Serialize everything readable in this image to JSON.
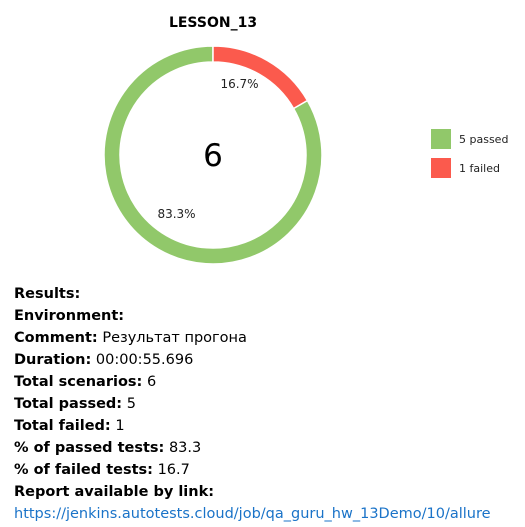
{
  "chart_data": {
    "type": "pie",
    "title": "LESSON_13",
    "center_label": "6",
    "slices": [
      {
        "label": "5 passed",
        "value": 5,
        "percent_label": "83.3%",
        "color": "#91c86a"
      },
      {
        "label": "1 failed",
        "value": 1,
        "percent_label": "16.7%",
        "color": "#fb5a4d"
      }
    ],
    "legend_position": "right"
  },
  "results": {
    "results_label": "Results:",
    "environment_label": "Environment:",
    "comment_label": "Comment:",
    "comment_value": "Результат прогона",
    "duration_label": "Duration:",
    "duration_value": "00:00:55.696",
    "total_scenarios_label": "Total scenarios:",
    "total_scenarios_value": "6",
    "total_passed_label": "Total passed:",
    "total_passed_value": "5",
    "total_failed_label": "Total failed:",
    "total_failed_value": "1",
    "pct_passed_label": "% of passed tests:",
    "pct_passed_value": "83.3",
    "pct_failed_label": "% of failed tests:",
    "pct_failed_value": "16.7",
    "report_label": "Report available by link:",
    "report_link": "https://jenkins.autotests.cloud/job/qa_guru_hw_13Demo/10/allure"
  }
}
